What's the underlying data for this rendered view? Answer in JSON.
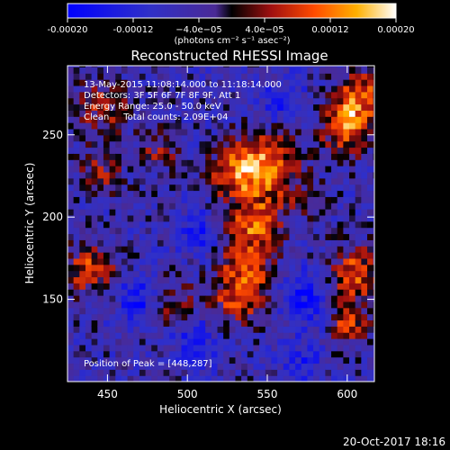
{
  "chart_data": {
    "type": "heatmap",
    "title": "Reconstructed RHESSI Image",
    "xlabel": "Heliocentric X (arcsec)",
    "ylabel": "Heliocentric Y (arcsec)",
    "xlim": [
      425,
      617
    ],
    "ylim": [
      100,
      292
    ],
    "x_ticks": [
      450,
      500,
      550,
      600
    ],
    "y_ticks": [
      150,
      200,
      250
    ],
    "colorbar": {
      "range": [
        -0.0002,
        0.0002
      ],
      "tick_values": [
        -0.0002,
        -0.00012,
        -4e-05,
        4e-05,
        0.00012,
        0.0002
      ],
      "tick_labels": [
        "-0.00020",
        "-0.00012",
        "−4.0e−05",
        "4.0e−05",
        "0.00012",
        "0.00020"
      ],
      "label": "(photons cm⁻² s⁻¹ asec⁻²)"
    },
    "annotations": [
      "13-May-2015 11:08:14.000 to 11:18:14.000",
      "Detectors: 3F 5F 6F 7F 8F 9F, Att 1",
      "Energy Range: 25.0 - 50.0 keV",
      "Clean     Total counts: 2.09E+04"
    ],
    "peak_label": "Position of Peak = [448,287]",
    "sources": [
      {
        "x": 548,
        "y": 232,
        "sigma": 14,
        "amp": 0.00019
      },
      {
        "x": 528,
        "y": 226,
        "sigma": 10,
        "amp": 0.00012
      },
      {
        "x": 542,
        "y": 198,
        "sigma": 11,
        "amp": 0.00015
      },
      {
        "x": 538,
        "y": 172,
        "sigma": 12,
        "amp": 0.00012
      },
      {
        "x": 532,
        "y": 150,
        "sigma": 12,
        "amp": 0.00013
      },
      {
        "x": 600,
        "y": 255,
        "sigma": 11,
        "amp": 0.00019
      },
      {
        "x": 608,
        "y": 275,
        "sigma": 10,
        "amp": 0.00014
      },
      {
        "x": 605,
        "y": 165,
        "sigma": 12,
        "amp": 0.00015
      },
      {
        "x": 600,
        "y": 135,
        "sigma": 9,
        "amp": 0.00013
      },
      {
        "x": 440,
        "y": 168,
        "sigma": 11,
        "amp": 0.00014
      },
      {
        "x": 447,
        "y": 267,
        "sigma": 12,
        "amp": 0.0001
      },
      {
        "x": 446,
        "y": 228,
        "sigma": 10,
        "amp": 9e-05
      },
      {
        "x": 482,
        "y": 240,
        "sigma": 9,
        "amp": 8e-05
      },
      {
        "x": 490,
        "y": 148,
        "sigma": 11,
        "amp": 9e-05
      },
      {
        "x": 575,
        "y": 210,
        "sigma": 9,
        "amp": 6e-05
      },
      {
        "x": 505,
        "y": 190,
        "sigma": 9,
        "amp": -0.0001
      },
      {
        "x": 470,
        "y": 150,
        "sigma": 10,
        "amp": -0.00012
      },
      {
        "x": 575,
        "y": 150,
        "sigma": 12,
        "amp": -0.00011
      },
      {
        "x": 560,
        "y": 270,
        "sigma": 10,
        "amp": -8e-05
      },
      {
        "x": 505,
        "y": 125,
        "sigma": 10,
        "amp": -0.0001
      },
      {
        "x": 572,
        "y": 112,
        "sigma": 9,
        "amp": -8e-05
      }
    ],
    "background": -6e-05,
    "noise": 6e-05
  },
  "footer": {
    "date": "20-Oct-2017 18:16"
  }
}
